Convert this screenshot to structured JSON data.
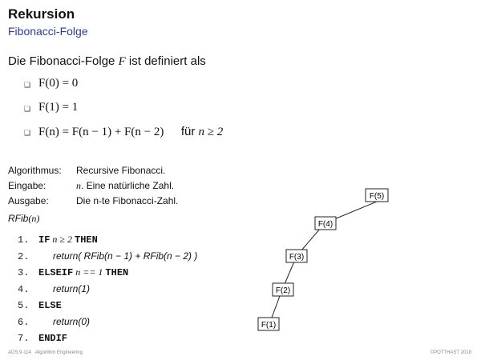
{
  "header": {
    "title": "Rekursion",
    "subtitle": "Fibonacci-Folge"
  },
  "intro": {
    "text_before": "Die Fibonacci-Folge ",
    "symbol": "F",
    "text_after": " ist definiert als"
  },
  "definitions": [
    {
      "formula": "F(0) = 0",
      "condition_text": "",
      "condition_math": ""
    },
    {
      "formula": "F(1) = 1",
      "condition_text": "",
      "condition_math": ""
    },
    {
      "formula": "F(n) = F(n − 1) + F(n − 2)",
      "condition_text": "für ",
      "condition_math": "n ≥ 2"
    }
  ],
  "algorithm": {
    "rows": [
      {
        "label": "Algorithmus:",
        "value_math": "",
        "value": "Recursive Fibonacci."
      },
      {
        "label": "Eingabe:",
        "value_math": "n",
        "value": ". Eine natürliche Zahl."
      },
      {
        "label": "Ausgabe:",
        "value_math": "",
        "value": "Die n-te Fibonacci-Zahl."
      }
    ],
    "function_name": "RFib",
    "function_arg": "(n)"
  },
  "code": [
    {
      "num": "1.",
      "indent": 0,
      "keyword": "IF",
      "math": " n ≥ 2 ",
      "keyword2": "THEN",
      "text": ""
    },
    {
      "num": "2.",
      "indent": 1,
      "keyword": "",
      "math": "",
      "keyword2": "",
      "text": "return(  RFib(n − 1) + RFib(n − 2)  )"
    },
    {
      "num": "3.",
      "indent": 0,
      "keyword": "ELSEIF",
      "math": " n == 1 ",
      "keyword2": "THEN",
      "text": ""
    },
    {
      "num": "4.",
      "indent": 1,
      "keyword": "",
      "math": "",
      "keyword2": "",
      "text": "return(1)"
    },
    {
      "num": "5.",
      "indent": 0,
      "keyword": "ELSE",
      "math": "",
      "keyword2": "",
      "text": ""
    },
    {
      "num": "6.",
      "indent": 1,
      "keyword": "",
      "math": "",
      "keyword2": "",
      "text": "return(0)"
    },
    {
      "num": "7.",
      "indent": 0,
      "keyword": "ENDIF",
      "math": "",
      "keyword2": "",
      "text": ""
    }
  ],
  "tree": {
    "nodes": [
      "F(5)",
      "F(4)",
      "F(3)",
      "F(2)",
      "F(1)"
    ]
  },
  "footer": {
    "left_code": "ADS:9-114",
    "left_title": "Algorithm Engineering",
    "right": "©POTTHAST 2018"
  }
}
